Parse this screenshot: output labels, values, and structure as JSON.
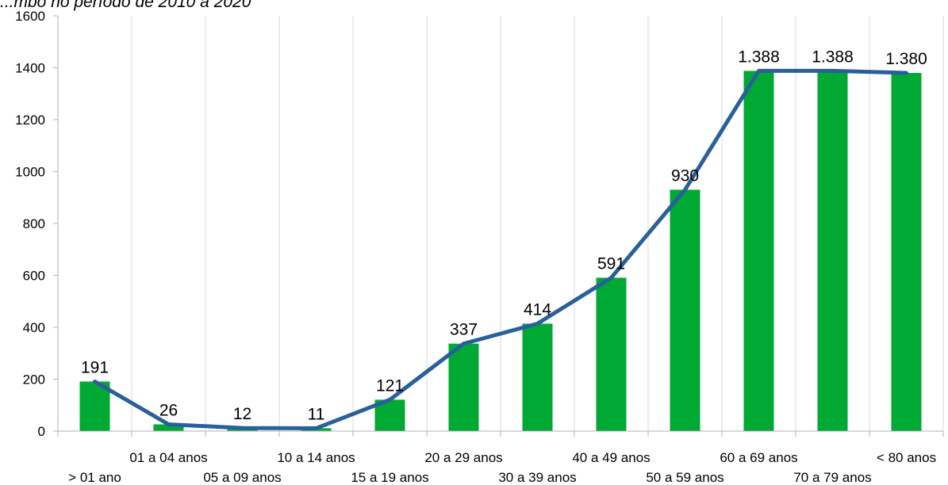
{
  "chart_data": {
    "type": "bar",
    "title": "...mbo no período de 2010 a 2020",
    "categories": [
      "> 01 ano",
      "01 a 04 anos",
      "05 a 09 anos",
      "10 a 14 anos",
      "15 a 19 anos",
      "20 a 29 anos",
      "30 a 39 anos",
      "40 a 49 anos",
      "50 a 59 anos",
      "60 a 69 anos",
      "70 a 79 anos",
      "< 80 anos"
    ],
    "values": [
      191,
      26,
      12,
      11,
      121,
      337,
      414,
      591,
      930,
      1388,
      1388,
      1380
    ],
    "data_labels": [
      "191",
      "26",
      "12",
      "11",
      "121",
      "337",
      "414",
      "591",
      "930",
      "1.388",
      "1.388",
      "1.380"
    ],
    "overlay_line": true,
    "ylim": [
      0,
      1600
    ],
    "yticks": [
      0,
      200,
      400,
      600,
      800,
      1000,
      1200,
      1400,
      1600
    ],
    "xlabel": "",
    "ylabel": "",
    "grid": "vertical",
    "legend": "none",
    "colors": {
      "bar": "#00a933",
      "line": "#2a6099",
      "grid": "#d9d9d9",
      "axis": "#b3b3b3"
    }
  }
}
